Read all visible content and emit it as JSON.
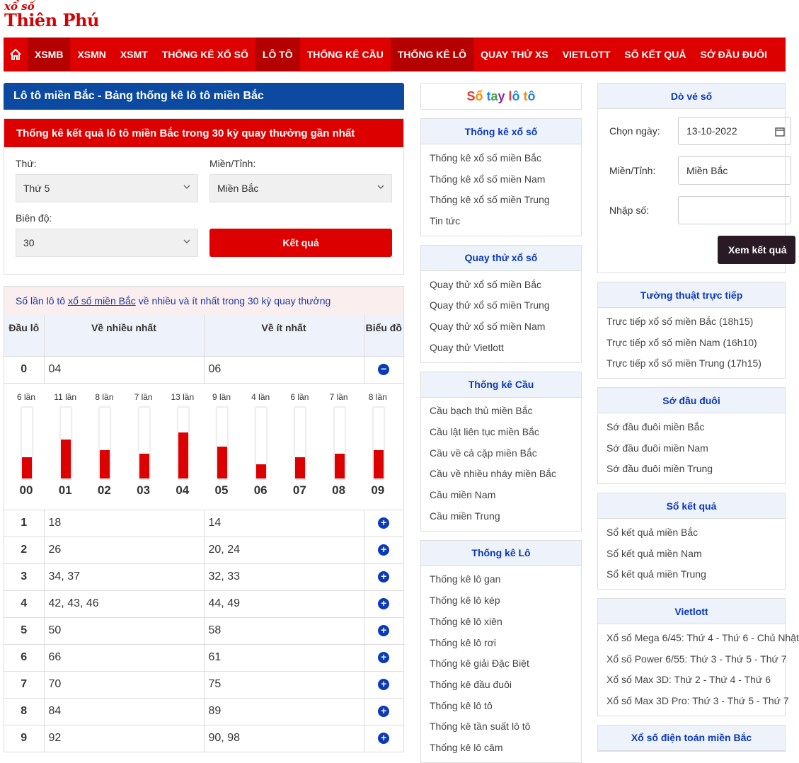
{
  "logo": {
    "top": "xổ số",
    "main": "Thiên Phú"
  },
  "nav": [
    {
      "label": "XSMB",
      "active": true
    },
    {
      "label": "XSMN",
      "active": false
    },
    {
      "label": "XSMT",
      "active": false
    },
    {
      "label": "THỐNG KÊ XỔ SỐ",
      "active": false
    },
    {
      "label": "LÔ TÔ",
      "active": true
    },
    {
      "label": "THỐNG KÊ CẦU",
      "active": false
    },
    {
      "label": "THỐNG KÊ LÔ",
      "active": true
    },
    {
      "label": "QUAY THỬ XS",
      "active": false
    },
    {
      "label": "VIETLOTT",
      "active": false
    },
    {
      "label": "SỐ KẾT QUẢ",
      "active": false
    },
    {
      "label": "SỞ ĐẦU ĐUÔI",
      "active": false
    }
  ],
  "main": {
    "title": "Lô tô miền Bắc - Bảng thống kê lô tô miền Bắc",
    "form_title": "Thống kê kết quả lô tô miền Bắc trong 30 kỳ quay thưởng gần nhất",
    "thu_label": "Thứ:",
    "thu_value": "Thứ 5",
    "mien_label": "Miền/Tỉnh:",
    "mien_value": "Miền Bắc",
    "biendo_label": "Biên độ:",
    "biendo_value": "30",
    "submit_label": "Kết quả",
    "caption_pre": "Số lần lô tô",
    "caption_link": "xổ số miền Bắc",
    "caption_post": "về nhiều và ít nhất trong 30 kỳ quay thưởng",
    "headers": {
      "dau": "Đầu lô",
      "nhieu": "Về nhiều nhất",
      "it": "Về ít nhất",
      "bieudo": "Biểu đồ"
    },
    "rows": [
      {
        "dau": "0",
        "nhieu": "04",
        "it": "06",
        "expanded": true
      },
      {
        "dau": "1",
        "nhieu": "18",
        "it": "14",
        "expanded": false
      },
      {
        "dau": "2",
        "nhieu": "26",
        "it": "20, 24",
        "expanded": false
      },
      {
        "dau": "3",
        "nhieu": "34, 37",
        "it": "32, 33",
        "expanded": false
      },
      {
        "dau": "4",
        "nhieu": "42, 43, 46",
        "it": "44, 49",
        "expanded": false
      },
      {
        "dau": "5",
        "nhieu": "50",
        "it": "58",
        "expanded": false
      },
      {
        "dau": "6",
        "nhieu": "66",
        "it": "61",
        "expanded": false
      },
      {
        "dau": "7",
        "nhieu": "70",
        "it": "75",
        "expanded": false
      },
      {
        "dau": "8",
        "nhieu": "84",
        "it": "89",
        "expanded": false
      },
      {
        "dau": "9",
        "nhieu": "92",
        "it": "90, 98",
        "expanded": false
      }
    ],
    "chart_data": {
      "type": "bar",
      "categories": [
        "00",
        "01",
        "02",
        "03",
        "04",
        "05",
        "06",
        "07",
        "08",
        "09"
      ],
      "values": [
        6,
        11,
        8,
        7,
        13,
        9,
        4,
        6,
        7,
        8
      ],
      "value_labels": [
        "6 lần",
        "11 lần",
        "8 lần",
        "7 lần",
        "13 lần",
        "9 lần",
        "4 lần",
        "6 lần",
        "7 lần",
        "8 lần"
      ],
      "ylim": [
        0,
        20
      ]
    }
  },
  "middle": {
    "sotay": [
      "S",
      "ổ",
      " ",
      "t",
      "a",
      "y",
      " ",
      "l",
      "ô",
      " ",
      "t",
      "ô"
    ],
    "sotay_colors": [
      "#e53935",
      "#fb8c00",
      "#000",
      "#1e88e5",
      "#43a047",
      "#8e24aa",
      "#000",
      "#e53935",
      "#1e88e5",
      "#000",
      "#fb8c00",
      "#1e88e5"
    ],
    "cards": [
      {
        "title": "Thống kê xổ số",
        "items": [
          "Thống kê xổ số miền Bắc",
          "Thống kê xổ số miền Nam",
          "Thống kê xổ số miền Trung",
          "Tin tức"
        ]
      },
      {
        "title": "Quay thử xổ số",
        "items": [
          "Quay thử xổ số miền Bắc",
          "Quay thử xổ số miền Trung",
          "Quay thử xổ số miền Nam",
          "Quay thử Vietlott"
        ]
      },
      {
        "title": "Thống kê Cầu",
        "items": [
          "Cầu bạch thủ miền Bắc",
          "Cầu lật liên tục miền Bắc",
          "Cầu về cả cặp miền Bắc",
          "Cầu về nhiều nháy miền Bắc",
          "Cầu miền Nam",
          "Cầu miền Trung"
        ]
      },
      {
        "title": "Thống kê Lô",
        "items": [
          "Thống kê lô gan",
          "Thống kê lô kép",
          "Thống kê lô xiên",
          "Thống kê lô rơi",
          "Thống kê giải Đặc Biệt",
          "Thống kê đầu đuôi",
          "Thống kê lô tô",
          "Thống kê tần suất lô tô",
          "Thống kê lô câm"
        ]
      }
    ]
  },
  "right": {
    "dove_title": "Dò vé số",
    "date_label": "Chọn ngày:",
    "date_value": "13-10-2022",
    "region_label": "Miền/Tỉnh:",
    "region_value": "Miền Bắc",
    "number_label": "Nhập số:",
    "number_value": "",
    "check_button": "Xem kết quả",
    "cards": [
      {
        "title": "Tường thuật trực tiếp",
        "items": [
          "Trực tiếp xổ số miền Bắc (18h15)",
          "Trực tiếp xổ số miền Nam (16h10)",
          "Trực tiếp xổ số miền Trung (17h15)"
        ]
      },
      {
        "title": "Sớ đầu đuôi",
        "items": [
          "Sớ đầu đuôi miền Bắc",
          "Sớ đầu đuôi miền Nam",
          "Sớ đầu đuôi miền Trung"
        ]
      },
      {
        "title": "Sổ kết quả",
        "items": [
          "Sổ kết quả miền Bắc",
          "Sổ kết quả miền Nam",
          "Sổ kết quả miền Trung"
        ]
      },
      {
        "title": "Vietlott",
        "items": [
          "Xổ số Mega 6/45: Thứ 4 - Thứ 6 - Chủ Nhật",
          "Xổ số Power 6/55: Thứ 3 - Thứ 5 - Thứ 7",
          "Xổ số Max 3D: Thứ 2 - Thứ 4 - Thứ 6",
          "Xổ số Max 3D Pro: Thứ 3 - Thứ 5 - Thứ 7"
        ]
      },
      {
        "title": "Xổ số điện toán miền Bắc",
        "items": []
      }
    ]
  }
}
